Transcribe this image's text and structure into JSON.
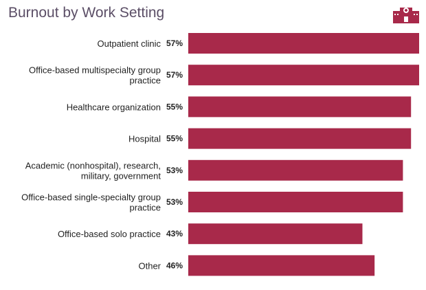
{
  "chart_data": {
    "type": "bar",
    "orientation": "horizontal",
    "title": "Burnout by Work Setting",
    "categories": [
      [
        "Outpatient clinic"
      ],
      [
        "Office-based multispecialty group",
        "practice"
      ],
      [
        "Healthcare organization"
      ],
      [
        "Hospital"
      ],
      [
        "Academic (nonhospital), research,",
        "military, government"
      ],
      [
        "Office-based single-specialty group",
        "practice"
      ],
      [
        "Office-based solo practice"
      ],
      [
        "Other"
      ]
    ],
    "values": [
      57,
      57,
      55,
      55,
      53,
      53,
      43,
      46
    ],
    "value_labels": [
      "57%",
      "57%",
      "55%",
      "55%",
      "53%",
      "53%",
      "43%",
      "46%"
    ],
    "unit": "%",
    "xlim": [
      0,
      57
    ],
    "grid": false,
    "bar_color": "#a8294a"
  },
  "header_icon": "hospital-icon"
}
